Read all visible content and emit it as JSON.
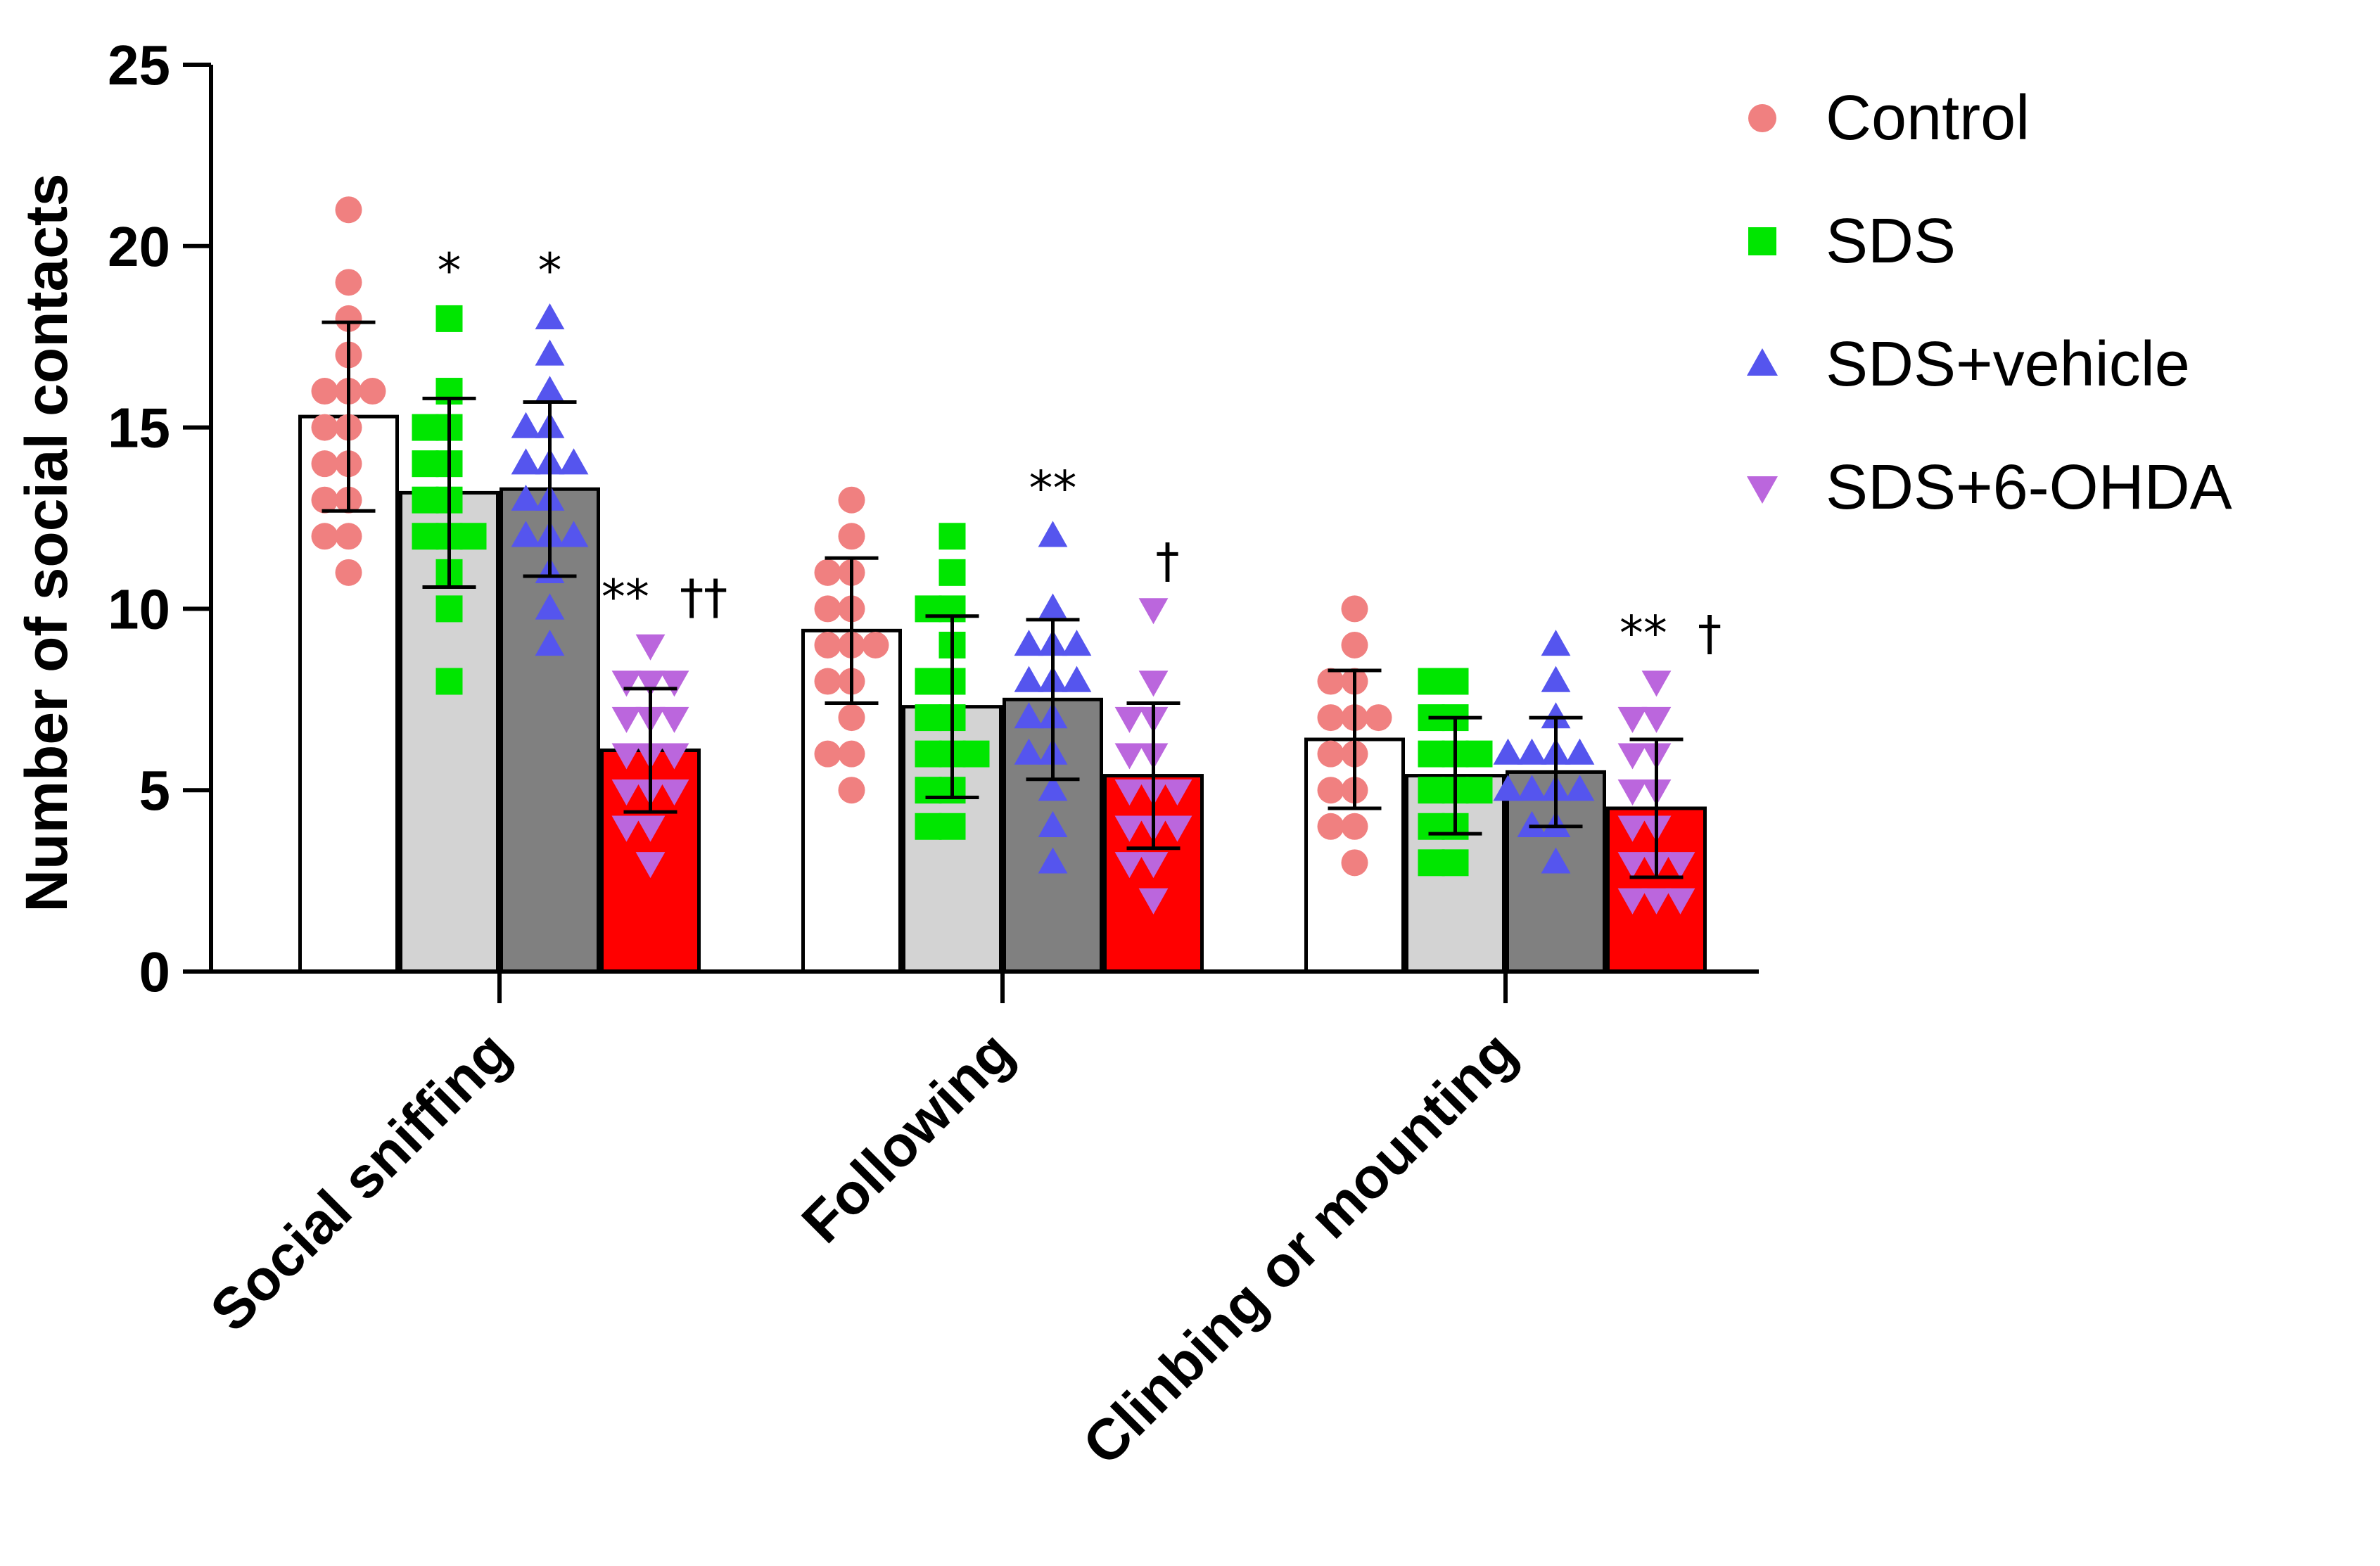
{
  "chart_data": {
    "type": "bar",
    "title": "",
    "xlabel": "",
    "ylabel": "Number of social contacts",
    "ylim": [
      0,
      25
    ],
    "yticks": [
      0,
      5,
      10,
      15,
      20,
      25
    ],
    "categories": [
      "Social sniffing",
      "Following",
      "Clinbing or mounting"
    ],
    "legend_position": "top-right",
    "series": [
      {
        "name": "Control",
        "bar_color": "#ffffff",
        "point_color": "#f08080",
        "marker": "circle",
        "values": [
          15.3,
          9.4,
          6.4
        ],
        "sd": [
          2.6,
          2.0,
          1.9
        ],
        "significance": [
          "",
          "",
          ""
        ],
        "points": [
          [
            21,
            19,
            18,
            17,
            16,
            16,
            16,
            15,
            15,
            14,
            14,
            13,
            13,
            12,
            12,
            11
          ],
          [
            13,
            12,
            11,
            11,
            10,
            10,
            9,
            9,
            9,
            8,
            8,
            7,
            6,
            6,
            5
          ],
          [
            10,
            9,
            8,
            8,
            7,
            7,
            7,
            6,
            6,
            5,
            5,
            4,
            4,
            3
          ]
        ]
      },
      {
        "name": "SDS",
        "bar_color": "#d3d3d3",
        "point_color": "#00e600",
        "marker": "square",
        "values": [
          13.2,
          7.3,
          5.4
        ],
        "sd": [
          2.6,
          2.5,
          1.6
        ],
        "significance": [
          "*",
          "",
          ""
        ],
        "points": [
          [
            18,
            16,
            15,
            15,
            14,
            14,
            13,
            13,
            12,
            12,
            12,
            11,
            10,
            8
          ],
          [
            12,
            11,
            10,
            10,
            9,
            8,
            8,
            7,
            7,
            6,
            6,
            6,
            5,
            5,
            4,
            4
          ],
          [
            8,
            8,
            7,
            7,
            6,
            6,
            6,
            5,
            5,
            5,
            4,
            4,
            3,
            3
          ]
        ]
      },
      {
        "name": "SDS+vehicle",
        "bar_color": "#808080",
        "point_color": "#5555ee",
        "marker": "triangle-up",
        "values": [
          13.3,
          7.5,
          5.5
        ],
        "sd": [
          2.4,
          2.2,
          1.5
        ],
        "significance": [
          "*",
          "**",
          ""
        ],
        "points": [
          [
            18,
            17,
            16,
            15,
            15,
            14,
            14,
            14,
            13,
            13,
            12,
            12,
            12,
            11,
            10,
            9
          ],
          [
            12,
            10,
            9,
            9,
            9,
            8,
            8,
            8,
            7,
            7,
            6,
            6,
            5,
            4,
            3
          ],
          [
            9,
            8,
            7,
            6,
            6,
            6,
            6,
            5,
            5,
            5,
            5,
            4,
            4,
            3
          ]
        ]
      },
      {
        "name": "SDS+6-OHDA",
        "bar_color": "#ff0000",
        "point_color": "#bb66dd",
        "marker": "triangle-down",
        "values": [
          6.1,
          5.4,
          4.5
        ],
        "sd": [
          1.7,
          2.0,
          1.9
        ],
        "significance": [
          "**  ††",
          "†",
          "**  †"
        ],
        "points": [
          [
            9,
            8,
            8,
            8,
            7,
            7,
            7,
            6,
            6,
            6,
            5,
            5,
            5,
            4,
            4,
            3
          ],
          [
            10,
            8,
            7,
            7,
            6,
            6,
            5,
            5,
            5,
            4,
            4,
            4,
            3,
            3,
            2
          ],
          [
            8,
            7,
            7,
            6,
            6,
            5,
            5,
            4,
            4,
            3,
            3,
            3,
            2,
            2,
            2
          ]
        ]
      }
    ]
  }
}
